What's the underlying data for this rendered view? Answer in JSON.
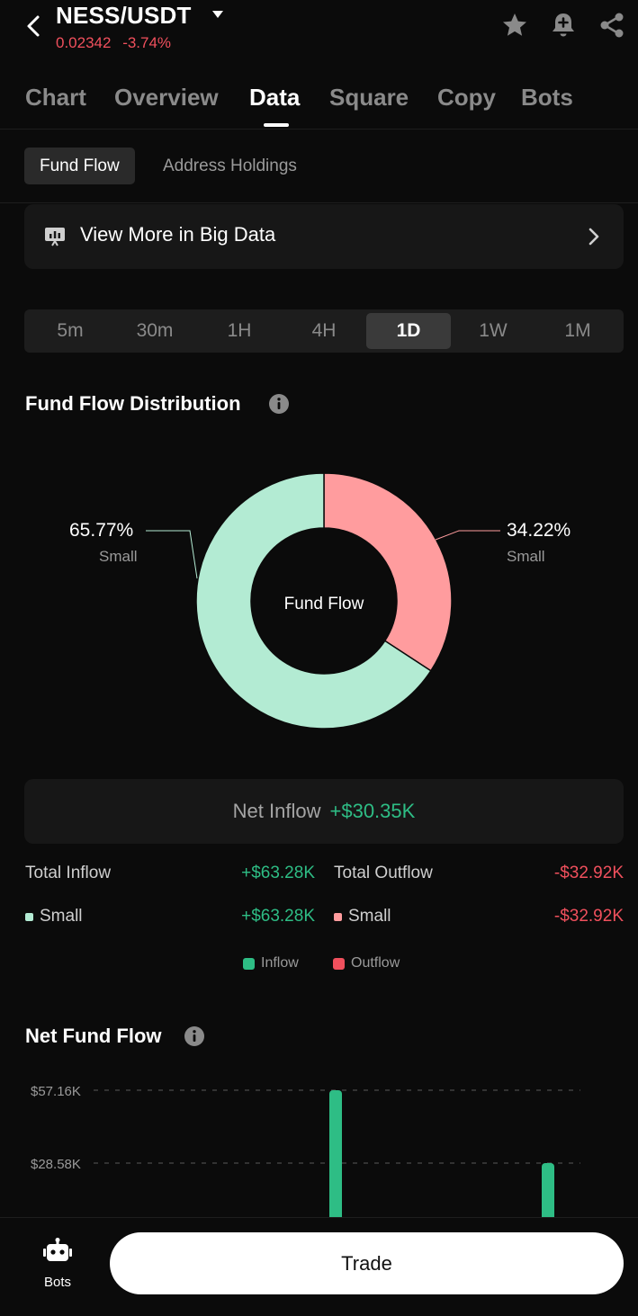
{
  "header": {
    "pair": "NESS/USDT",
    "price": "0.02342",
    "change": "-3.74%"
  },
  "tabs": [
    "Chart",
    "Overview",
    "Data",
    "Square",
    "Copy",
    "Bots"
  ],
  "subtabs": [
    "Fund Flow",
    "Address Holdings"
  ],
  "bigdata": {
    "label": "View More in Big Data"
  },
  "timeframes": [
    "5m",
    "30m",
    "1H",
    "4H",
    "1D",
    "1W",
    "1M"
  ],
  "distribution": {
    "title": "Fund Flow Distribution",
    "center_label": "Fund Flow",
    "inflow_pct": "65.77%",
    "inflow_sub": "Small",
    "outflow_pct": "34.22%",
    "outflow_sub": "Small"
  },
  "chart_data": [
    {
      "type": "pie",
      "title": "Fund Flow Distribution",
      "categories": [
        "Inflow (Small)",
        "Outflow (Small)"
      ],
      "values": [
        65.77,
        34.22
      ],
      "colors": [
        "#b3ebd3",
        "#ff9c9e"
      ]
    },
    {
      "type": "bar",
      "title": "Net Fund Flow",
      "ytick_labels": [
        "$57.16K",
        "$28.58K"
      ],
      "ytick_values": [
        57.16,
        28.58
      ],
      "bar_values": [
        57.16,
        28.58
      ],
      "unit": "$K"
    }
  ],
  "net": {
    "label": "Net Inflow",
    "value": "+$30.35K"
  },
  "totals": {
    "inflow_label": "Total Inflow",
    "inflow_value": "+$63.28K",
    "outflow_label": "Total Outflow",
    "outflow_value": "-$32.92K",
    "small_in_label": "Small",
    "small_in_value": "+$63.28K",
    "small_out_label": "Small",
    "small_out_value": "-$32.92K"
  },
  "legend": {
    "inflow": "Inflow",
    "outflow": "Outflow"
  },
  "netflow": {
    "title": "Net Fund Flow",
    "y_top": "$57.16K",
    "y_mid": "$28.58K"
  },
  "bottom": {
    "bots_label": "Bots",
    "trade_label": "Trade"
  },
  "colors": {
    "green": "#2ebd85",
    "red": "#f0505d",
    "inflow_light": "#b3ebd3",
    "outflow_light": "#ff9c9e"
  }
}
